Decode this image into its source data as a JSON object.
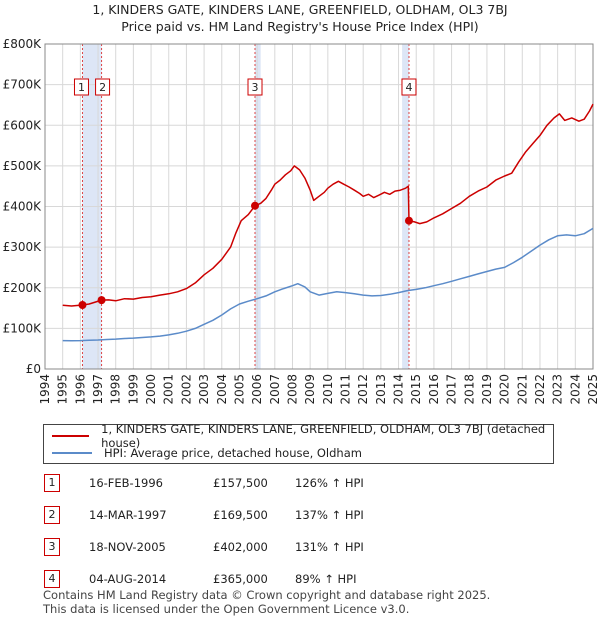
{
  "chart_data": {
    "type": "line",
    "title": "1, KINDERS GATE, KINDERS LANE, GREENFIELD, OLDHAM, OL3 7BJ",
    "subtitle": "Price paid vs. HM Land Registry's House Price Index (HPI)",
    "xlim": [
      1994,
      2025
    ],
    "ylim": [
      0,
      800000
    ],
    "x_ticks": [
      "1994",
      "1995",
      "1996",
      "1997",
      "1998",
      "1999",
      "2000",
      "2001",
      "2002",
      "2003",
      "2004",
      "2005",
      "2006",
      "2007",
      "2008",
      "2009",
      "2010",
      "2011",
      "2012",
      "2013",
      "2014",
      "2015",
      "2016",
      "2017",
      "2018",
      "2019",
      "2020",
      "2021",
      "2022",
      "2023",
      "2024",
      "2025"
    ],
    "y_ticks": [
      {
        "value": 0,
        "label": "£0"
      },
      {
        "value": 100000,
        "label": "£100K"
      },
      {
        "value": 200000,
        "label": "£200K"
      },
      {
        "value": 300000,
        "label": "£300K"
      },
      {
        "value": 400000,
        "label": "£400K"
      },
      {
        "value": 500000,
        "label": "£500K"
      },
      {
        "value": 600000,
        "label": "£600K"
      },
      {
        "value": 700000,
        "label": "£700K"
      },
      {
        "value": 800000,
        "label": "£800K"
      }
    ],
    "series": [
      {
        "name": "1, KINDERS GATE, KINDERS LANE, GREENFIELD, OLDHAM, OL3 7BJ (detached house)",
        "color": "#cc0000",
        "points": [
          [
            1995.0,
            157000
          ],
          [
            1995.5,
            155000
          ],
          [
            1996.12,
            157500
          ],
          [
            1996.5,
            160000
          ],
          [
            1997.2,
            169500
          ],
          [
            1997.6,
            170000
          ],
          [
            1998.0,
            168000
          ],
          [
            1998.5,
            173000
          ],
          [
            1999.0,
            172000
          ],
          [
            1999.5,
            176000
          ],
          [
            2000.0,
            178000
          ],
          [
            2000.5,
            182000
          ],
          [
            2001.0,
            185000
          ],
          [
            2001.5,
            190000
          ],
          [
            2002.0,
            198000
          ],
          [
            2002.5,
            212000
          ],
          [
            2003.0,
            232000
          ],
          [
            2003.5,
            248000
          ],
          [
            2004.0,
            270000
          ],
          [
            2004.5,
            300000
          ],
          [
            2004.8,
            335000
          ],
          [
            2005.1,
            365000
          ],
          [
            2005.5,
            380000
          ],
          [
            2005.88,
            402000
          ],
          [
            2006.2,
            408000
          ],
          [
            2006.5,
            420000
          ],
          [
            2006.8,
            440000
          ],
          [
            2007.0,
            455000
          ],
          [
            2007.3,
            465000
          ],
          [
            2007.6,
            478000
          ],
          [
            2007.9,
            488000
          ],
          [
            2008.1,
            500000
          ],
          [
            2008.4,
            490000
          ],
          [
            2008.7,
            470000
          ],
          [
            2009.0,
            440000
          ],
          [
            2009.2,
            415000
          ],
          [
            2009.5,
            425000
          ],
          [
            2009.8,
            435000
          ],
          [
            2010.0,
            445000
          ],
          [
            2010.3,
            455000
          ],
          [
            2010.6,
            462000
          ],
          [
            2010.9,
            455000
          ],
          [
            2011.2,
            448000
          ],
          [
            2011.5,
            440000
          ],
          [
            2011.8,
            432000
          ],
          [
            2012.0,
            425000
          ],
          [
            2012.3,
            430000
          ],
          [
            2012.6,
            422000
          ],
          [
            2012.9,
            428000
          ],
          [
            2013.2,
            435000
          ],
          [
            2013.5,
            430000
          ],
          [
            2013.8,
            438000
          ],
          [
            2014.1,
            440000
          ],
          [
            2014.4,
            445000
          ],
          [
            2014.55,
            450000
          ],
          [
            2014.59,
            365000
          ],
          [
            2014.9,
            362000
          ],
          [
            2015.2,
            358000
          ],
          [
            2015.6,
            362000
          ],
          [
            2016.0,
            372000
          ],
          [
            2016.5,
            382000
          ],
          [
            2017.0,
            395000
          ],
          [
            2017.5,
            408000
          ],
          [
            2018.0,
            425000
          ],
          [
            2018.5,
            438000
          ],
          [
            2019.0,
            448000
          ],
          [
            2019.5,
            465000
          ],
          [
            2020.0,
            475000
          ],
          [
            2020.4,
            482000
          ],
          [
            2020.8,
            510000
          ],
          [
            2021.2,
            535000
          ],
          [
            2021.6,
            555000
          ],
          [
            2022.0,
            575000
          ],
          [
            2022.4,
            600000
          ],
          [
            2022.8,
            618000
          ],
          [
            2023.1,
            628000
          ],
          [
            2023.4,
            612000
          ],
          [
            2023.8,
            618000
          ],
          [
            2024.2,
            610000
          ],
          [
            2024.5,
            615000
          ],
          [
            2024.8,
            635000
          ],
          [
            2025.0,
            652000
          ]
        ]
      },
      {
        "name": "HPI: Average price, detached house, Oldham",
        "color": "#5b8bc9",
        "points": [
          [
            1995.0,
            70000
          ],
          [
            1995.5,
            69500
          ],
          [
            1996.0,
            70000
          ],
          [
            1996.5,
            71000
          ],
          [
            1997.0,
            71500
          ],
          [
            1997.5,
            72500
          ],
          [
            1998.0,
            73500
          ],
          [
            1998.5,
            75000
          ],
          [
            1999.0,
            76000
          ],
          [
            1999.5,
            77500
          ],
          [
            2000.0,
            79000
          ],
          [
            2000.5,
            81000
          ],
          [
            2001.0,
            84000
          ],
          [
            2001.5,
            88000
          ],
          [
            2002.0,
            93000
          ],
          [
            2002.5,
            100000
          ],
          [
            2003.0,
            110000
          ],
          [
            2003.5,
            120000
          ],
          [
            2004.0,
            133000
          ],
          [
            2004.5,
            148000
          ],
          [
            2005.0,
            160000
          ],
          [
            2005.5,
            167000
          ],
          [
            2006.0,
            173000
          ],
          [
            2006.5,
            180000
          ],
          [
            2007.0,
            190000
          ],
          [
            2007.5,
            198000
          ],
          [
            2008.0,
            205000
          ],
          [
            2008.3,
            210000
          ],
          [
            2008.7,
            202000
          ],
          [
            2009.0,
            190000
          ],
          [
            2009.5,
            182000
          ],
          [
            2010.0,
            186000
          ],
          [
            2010.5,
            190000
          ],
          [
            2011.0,
            188000
          ],
          [
            2011.5,
            185000
          ],
          [
            2012.0,
            182000
          ],
          [
            2012.5,
            180000
          ],
          [
            2013.0,
            181000
          ],
          [
            2013.5,
            184000
          ],
          [
            2014.0,
            188000
          ],
          [
            2014.5,
            193000
          ],
          [
            2015.0,
            196000
          ],
          [
            2015.5,
            200000
          ],
          [
            2016.0,
            205000
          ],
          [
            2016.5,
            210000
          ],
          [
            2017.0,
            216000
          ],
          [
            2017.5,
            222000
          ],
          [
            2018.0,
            228000
          ],
          [
            2018.5,
            234000
          ],
          [
            2019.0,
            240000
          ],
          [
            2019.5,
            246000
          ],
          [
            2020.0,
            250000
          ],
          [
            2020.5,
            262000
          ],
          [
            2021.0,
            275000
          ],
          [
            2021.5,
            290000
          ],
          [
            2022.0,
            305000
          ],
          [
            2022.5,
            318000
          ],
          [
            2023.0,
            328000
          ],
          [
            2023.5,
            330000
          ],
          [
            2024.0,
            328000
          ],
          [
            2024.5,
            333000
          ],
          [
            2025.0,
            346000
          ]
        ]
      }
    ],
    "sales": [
      {
        "label": "1",
        "x": 1996.12,
        "y": 157500
      },
      {
        "label": "2",
        "x": 1997.2,
        "y": 169500
      },
      {
        "label": "3",
        "x": 2005.88,
        "y": 402000
      },
      {
        "label": "4",
        "x": 2014.59,
        "y": 365000
      }
    ],
    "shaded_ranges": [
      [
        1996.12,
        1997.2
      ],
      [
        2005.88,
        2006.2
      ],
      [
        2014.2,
        2014.59
      ]
    ],
    "grid": true
  },
  "legend": {
    "property_label": "1, KINDERS GATE, KINDERS LANE, GREENFIELD, OLDHAM, OL3 7BJ (detached house)",
    "hpi_label": "HPI: Average price, detached house, Oldham"
  },
  "transactions": [
    {
      "num": "1",
      "date": "16-FEB-1996",
      "price": "£157,500",
      "hpi": "126% ↑ HPI"
    },
    {
      "num": "2",
      "date": "14-MAR-1997",
      "price": "£169,500",
      "hpi": "137% ↑ HPI"
    },
    {
      "num": "3",
      "date": "18-NOV-2005",
      "price": "£402,000",
      "hpi": "131% ↑ HPI"
    },
    {
      "num": "4",
      "date": "04-AUG-2014",
      "price": "£365,000",
      "hpi": "89% ↑ HPI"
    }
  ],
  "footer": {
    "line1": "Contains HM Land Registry data © Crown copyright and database right 2025.",
    "line2": "This data is licensed under the Open Government Licence v3.0."
  },
  "colors": {
    "property": "#cc0000",
    "hpi": "#5b8bc9",
    "shade": "#dde6f6"
  }
}
